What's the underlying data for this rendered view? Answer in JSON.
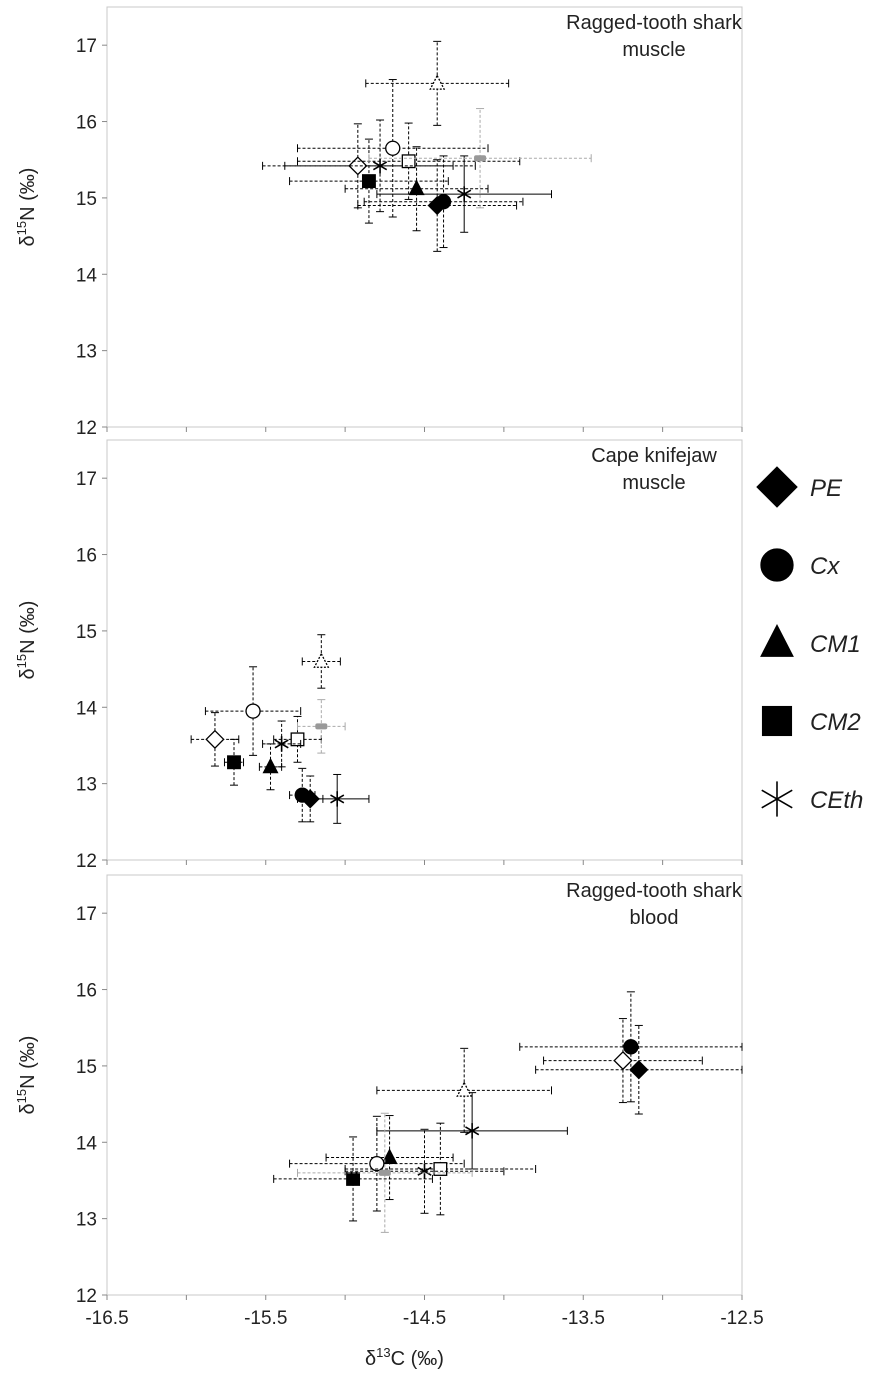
{
  "legend": [
    {
      "label": "PE",
      "icon": "diamond-icon"
    },
    {
      "label": "Cx",
      "icon": "circle-icon"
    },
    {
      "label": "CM1",
      "icon": "triangle-icon"
    },
    {
      "label": "CM2",
      "icon": "square-icon"
    },
    {
      "label": "CEth",
      "icon": "asterisk-icon"
    }
  ],
  "chart_data": [
    {
      "type": "scatter",
      "title_lines": [
        "Ragged-tooth shark",
        "muscle"
      ],
      "ylabel": {
        "delta": "δ",
        "sup": "15",
        "elem": "N  (‰)"
      },
      "xlim": [
        -16.5,
        -12.5
      ],
      "ylim": [
        12,
        17.5
      ],
      "yticks": [
        "12",
        "13",
        "14",
        "15",
        "16",
        "17"
      ],
      "xticks": [],
      "points": [
        {
          "marker": "diamond",
          "fill": "#000000",
          "x": -14.42,
          "y": 14.9,
          "xerr": 0.5,
          "yerr": 0.6
        },
        {
          "marker": "circle",
          "fill": "#000000",
          "x": -14.38,
          "y": 14.95,
          "xerr": 0.5,
          "yerr": 0.6
        },
        {
          "marker": "triangle",
          "fill": "#000000",
          "x": -14.55,
          "y": 15.12,
          "xerr": 0.45,
          "yerr": 0.55
        },
        {
          "marker": "square",
          "fill": "#000000",
          "x": -14.85,
          "y": 15.22,
          "xerr": 0.5,
          "yerr": 0.55
        },
        {
          "marker": "asterisk",
          "fill": "#000000",
          "x": -14.25,
          "y": 15.05,
          "xerr": 0.55,
          "yerr": 0.5,
          "solid": true
        },
        {
          "marker": "diamond",
          "fill": "#ffffff",
          "x": -14.92,
          "y": 15.42,
          "xerr": 0.6,
          "yerr": 0.55
        },
        {
          "marker": "circle",
          "fill": "#ffffff",
          "x": -14.7,
          "y": 15.65,
          "xerr": 0.6,
          "yerr": 0.9
        },
        {
          "marker": "square",
          "fill": "#ffffff",
          "x": -14.6,
          "y": 15.48,
          "xerr": 0.7,
          "yerr": 0.5
        },
        {
          "marker": "asterisk",
          "fill": "#000000",
          "x": -14.78,
          "y": 15.42,
          "xerr": 0.6,
          "yerr": 0.6
        },
        {
          "marker": "triangle",
          "fill": "#ffffff",
          "x": -14.42,
          "y": 16.5,
          "xerr": 0.45,
          "yerr": 0.55
        },
        {
          "marker": "dash",
          "fill": "#999999",
          "x": -14.15,
          "y": 15.52,
          "xerr": 0.7,
          "yerr": 0.65,
          "grey": true
        }
      ]
    },
    {
      "type": "scatter",
      "title_lines": [
        "Cape knifejaw",
        "muscle"
      ],
      "ylabel": {
        "delta": "δ",
        "sup": "15",
        "elem": "N  (‰)"
      },
      "xlim": [
        -16.5,
        -12.5
      ],
      "ylim": [
        12,
        17.5
      ],
      "yticks": [
        "12",
        "13",
        "14",
        "15",
        "16",
        "17"
      ],
      "xticks": [],
      "points": [
        {
          "marker": "diamond",
          "fill": "#000000",
          "x": -15.22,
          "y": 12.8,
          "xerr": 0.08,
          "yerr": 0.3
        },
        {
          "marker": "circle",
          "fill": "#000000",
          "x": -15.27,
          "y": 12.85,
          "xerr": 0.08,
          "yerr": 0.35
        },
        {
          "marker": "triangle",
          "fill": "#000000",
          "x": -15.47,
          "y": 13.22,
          "xerr": 0.07,
          "yerr": 0.3
        },
        {
          "marker": "square",
          "fill": "#000000",
          "x": -15.7,
          "y": 13.28,
          "xerr": 0.06,
          "yerr": 0.3
        },
        {
          "marker": "asterisk",
          "fill": "#000000",
          "x": -15.05,
          "y": 12.8,
          "xerr": 0.2,
          "yerr": 0.32,
          "solid": true
        },
        {
          "marker": "diamond",
          "fill": "#ffffff",
          "x": -15.82,
          "y": 13.58,
          "xerr": 0.15,
          "yerr": 0.35
        },
        {
          "marker": "circle",
          "fill": "#ffffff",
          "x": -15.58,
          "y": 13.95,
          "xerr": 0.3,
          "yerr": 0.58
        },
        {
          "marker": "square",
          "fill": "#ffffff",
          "x": -15.3,
          "y": 13.58,
          "xerr": 0.15,
          "yerr": 0.3
        },
        {
          "marker": "asterisk",
          "fill": "#000000",
          "x": -15.4,
          "y": 13.52,
          "xerr": 0.12,
          "yerr": 0.3
        },
        {
          "marker": "triangle",
          "fill": "#ffffff",
          "x": -15.15,
          "y": 14.6,
          "xerr": 0.12,
          "yerr": 0.35
        },
        {
          "marker": "dash",
          "fill": "#999999",
          "x": -15.15,
          "y": 13.75,
          "xerr": 0.15,
          "yerr": 0.35,
          "grey": true
        }
      ]
    },
    {
      "type": "scatter",
      "title_lines": [
        "Ragged-tooth shark",
        "blood"
      ],
      "ylabel": {
        "delta": "δ",
        "sup": "15",
        "elem": "N  (‰)"
      },
      "xlim": [
        -16.5,
        -12.5
      ],
      "ylim": [
        12,
        17.5
      ],
      "yticks": [
        "12",
        "13",
        "14",
        "15",
        "16",
        "17"
      ],
      "xticks": [
        "-16.5",
        "-15.5",
        "-14.5",
        "-13.5",
        "-12.5"
      ],
      "xlabel": {
        "delta": "δ",
        "sup": "13",
        "elem": "C   (‰)"
      },
      "points": [
        {
          "marker": "diamond",
          "fill": "#000000",
          "x": -13.15,
          "y": 14.95,
          "xerr": 0.65,
          "yerr": 0.58
        },
        {
          "marker": "circle",
          "fill": "#000000",
          "x": -13.2,
          "y": 15.25,
          "xerr": 0.7,
          "yerr": 0.72
        },
        {
          "marker": "triangle",
          "fill": "#000000",
          "x": -14.72,
          "y": 13.8,
          "xerr": 0.4,
          "yerr": 0.55
        },
        {
          "marker": "square",
          "fill": "#000000",
          "x": -14.95,
          "y": 13.52,
          "xerr": 0.5,
          "yerr": 0.55
        },
        {
          "marker": "asterisk",
          "fill": "#000000",
          "x": -14.2,
          "y": 14.15,
          "xerr": 0.6,
          "yerr": 0.5,
          "solid": true
        },
        {
          "marker": "diamond",
          "fill": "#ffffff",
          "x": -13.25,
          "y": 15.07,
          "xerr": 0.5,
          "yerr": 0.55
        },
        {
          "marker": "circle",
          "fill": "#ffffff",
          "x": -14.8,
          "y": 13.72,
          "xerr": 0.55,
          "yerr": 0.62
        },
        {
          "marker": "square",
          "fill": "#ffffff",
          "x": -14.4,
          "y": 13.65,
          "xerr": 0.6,
          "yerr": 0.6
        },
        {
          "marker": "asterisk",
          "fill": "#000000",
          "x": -14.5,
          "y": 13.62,
          "xerr": 0.5,
          "yerr": 0.55
        },
        {
          "marker": "triangle",
          "fill": "#ffffff",
          "x": -14.25,
          "y": 14.68,
          "xerr": 0.55,
          "yerr": 0.55
        },
        {
          "marker": "dash",
          "fill": "#999999",
          "x": -14.75,
          "y": 13.6,
          "xerr": 0.55,
          "yerr": 0.78,
          "grey": true
        }
      ]
    }
  ]
}
